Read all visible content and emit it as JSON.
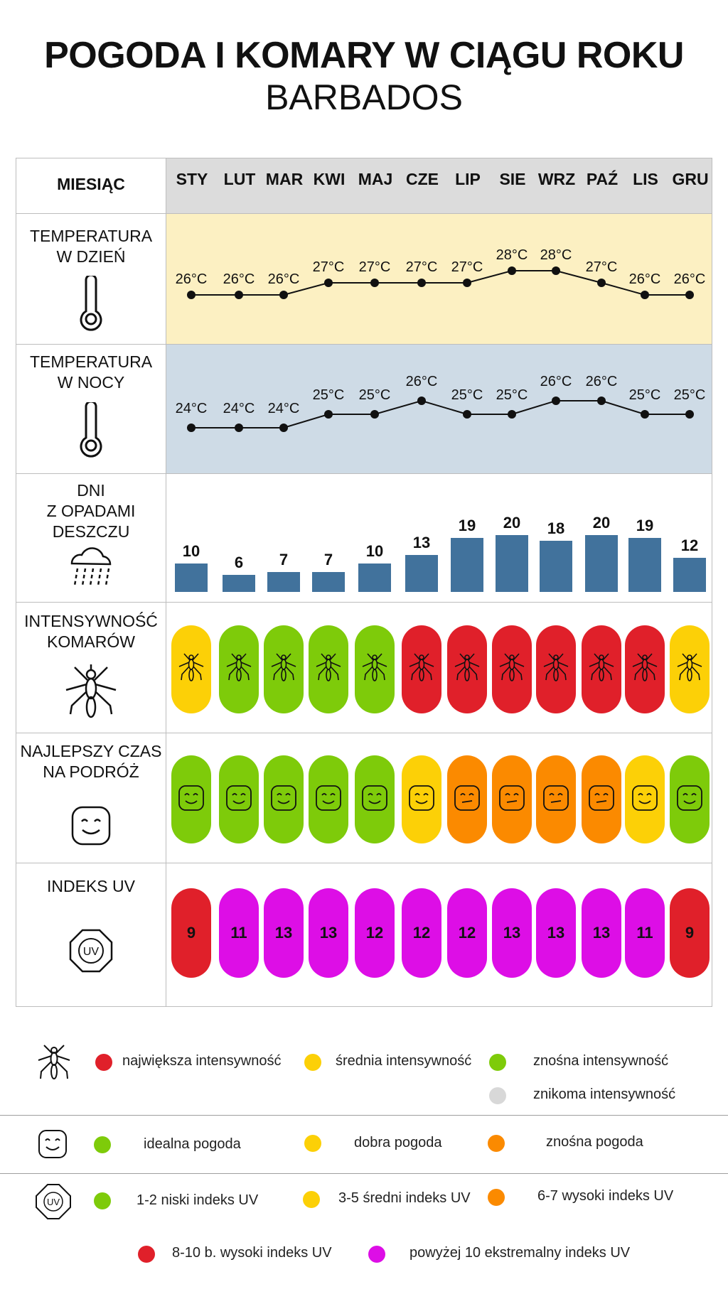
{
  "header": {
    "title": "POGODA I KOMARY W CIĄGU ROKU",
    "subtitle": "BARBADOS"
  },
  "table": {
    "month_header": "MIESIĄC",
    "months": [
      "STY",
      "LUT",
      "MAR",
      "KWI",
      "MAJ",
      "CZE",
      "LIP",
      "SIE",
      "WRZ",
      "PAŹ",
      "LIS",
      "GRU"
    ],
    "rows": {
      "day_temp": [
        "TEMPERATURA",
        "W DZIEŃ"
      ],
      "night_temp": [
        "TEMPERATURA",
        "W NOCY"
      ],
      "rain_days": [
        "DNI",
        "Z OPADAMI",
        "DESZCZU"
      ],
      "mosquito": [
        "INTENSYWNOŚĆ",
        "KOMARÓW"
      ],
      "best_time": [
        "NAJLEPSZY CZAS",
        "NA PODRÓŻ"
      ],
      "uv": [
        "INDEKS UV"
      ]
    }
  },
  "chart_data": [
    {
      "type": "line",
      "name": "temperatura w dzień",
      "categories": [
        "STY",
        "LUT",
        "MAR",
        "KWI",
        "MAJ",
        "CZE",
        "LIP",
        "SIE",
        "WRZ",
        "PAŹ",
        "LIS",
        "GRU"
      ],
      "values": [
        26,
        26,
        26,
        27,
        27,
        27,
        27,
        28,
        28,
        27,
        26,
        26
      ],
      "labels": [
        "26°C",
        "26°C",
        "26°C",
        "27°C",
        "27°C",
        "27°C",
        "27°C",
        "28°C",
        "28°C",
        "27°C",
        "26°C",
        "26°C"
      ],
      "unit": "°C"
    },
    {
      "type": "line",
      "name": "temperatura w nocy",
      "categories": [
        "STY",
        "LUT",
        "MAR",
        "KWI",
        "MAJ",
        "CZE",
        "LIP",
        "SIE",
        "WRZ",
        "PAŹ",
        "LIS",
        "GRU"
      ],
      "values": [
        24,
        24,
        24,
        25,
        25,
        26,
        25,
        25,
        26,
        26,
        25,
        25
      ],
      "labels": [
        "24°C",
        "24°C",
        "24°C",
        "25°C",
        "25°C",
        "26°C",
        "25°C",
        "25°C",
        "26°C",
        "26°C",
        "25°C",
        "25°C"
      ],
      "unit": "°C"
    },
    {
      "type": "bar",
      "name": "dni z opadami deszczu",
      "categories": [
        "STY",
        "LUT",
        "MAR",
        "KWI",
        "MAJ",
        "CZE",
        "LIP",
        "SIE",
        "WRZ",
        "PAŹ",
        "LIS",
        "GRU"
      ],
      "values": [
        10,
        6,
        7,
        7,
        10,
        13,
        19,
        20,
        18,
        20,
        19,
        12
      ],
      "color": "#41729c"
    },
    {
      "type": "table",
      "name": "intensywność komarów",
      "categories": [
        "STY",
        "LUT",
        "MAR",
        "KWI",
        "MAJ",
        "CZE",
        "LIP",
        "SIE",
        "WRZ",
        "PAŹ",
        "LIS",
        "GRU"
      ],
      "levels": [
        "medium",
        "low",
        "low",
        "low",
        "low",
        "high",
        "high",
        "high",
        "high",
        "high",
        "high",
        "medium"
      ]
    },
    {
      "type": "table",
      "name": "najlepszy czas na podróż",
      "categories": [
        "STY",
        "LUT",
        "MAR",
        "KWI",
        "MAJ",
        "CZE",
        "LIP",
        "SIE",
        "WRZ",
        "PAŹ",
        "LIS",
        "GRU"
      ],
      "levels": [
        "ideal",
        "ideal",
        "ideal",
        "ideal",
        "ideal",
        "good",
        "ok",
        "ok",
        "ok",
        "ok",
        "good",
        "ideal"
      ]
    },
    {
      "type": "table",
      "name": "indeks uv",
      "categories": [
        "STY",
        "LUT",
        "MAR",
        "KWI",
        "MAJ",
        "CZE",
        "LIP",
        "SIE",
        "WRZ",
        "PAŹ",
        "LIS",
        "GRU"
      ],
      "values": [
        9,
        11,
        13,
        13,
        12,
        12,
        12,
        13,
        13,
        13,
        11,
        9
      ]
    }
  ],
  "colors": {
    "red": "#e0202a",
    "yellow": "#fcd007",
    "green": "#7ecb0a",
    "orange": "#fb8a00",
    "purple": "#dd0ee6",
    "grey": "#d8d8d8",
    "day_band": "#fcf0c2",
    "night_band": "#cedbe6",
    "header_band": "#dcdcdc",
    "bar": "#41729c"
  },
  "icons": {
    "day_temp": "thermometer-icon",
    "night_temp": "thermometer-icon",
    "rain": "rain-cloud-icon",
    "mosquito": "mosquito-icon",
    "best_time": "smiley-icon",
    "uv": "uv-badge-icon"
  },
  "legend": {
    "mosquito": {
      "high": "największa intensywność",
      "medium": "średnia intensywność",
      "low": "znośna intensywność",
      "none": "znikoma intensywność"
    },
    "weather": {
      "ideal": "idealna pogoda",
      "good": "dobra pogoda",
      "ok": "znośna pogoda"
    },
    "uv": {
      "low": "1-2 niski indeks UV",
      "mid": "3-5 średni indeks UV",
      "high": "6-7 wysoki indeks UV",
      "very_high": "8-10 b. wysoki indeks UV",
      "extreme": "powyżej 10 ekstremalny indeks UV"
    }
  }
}
